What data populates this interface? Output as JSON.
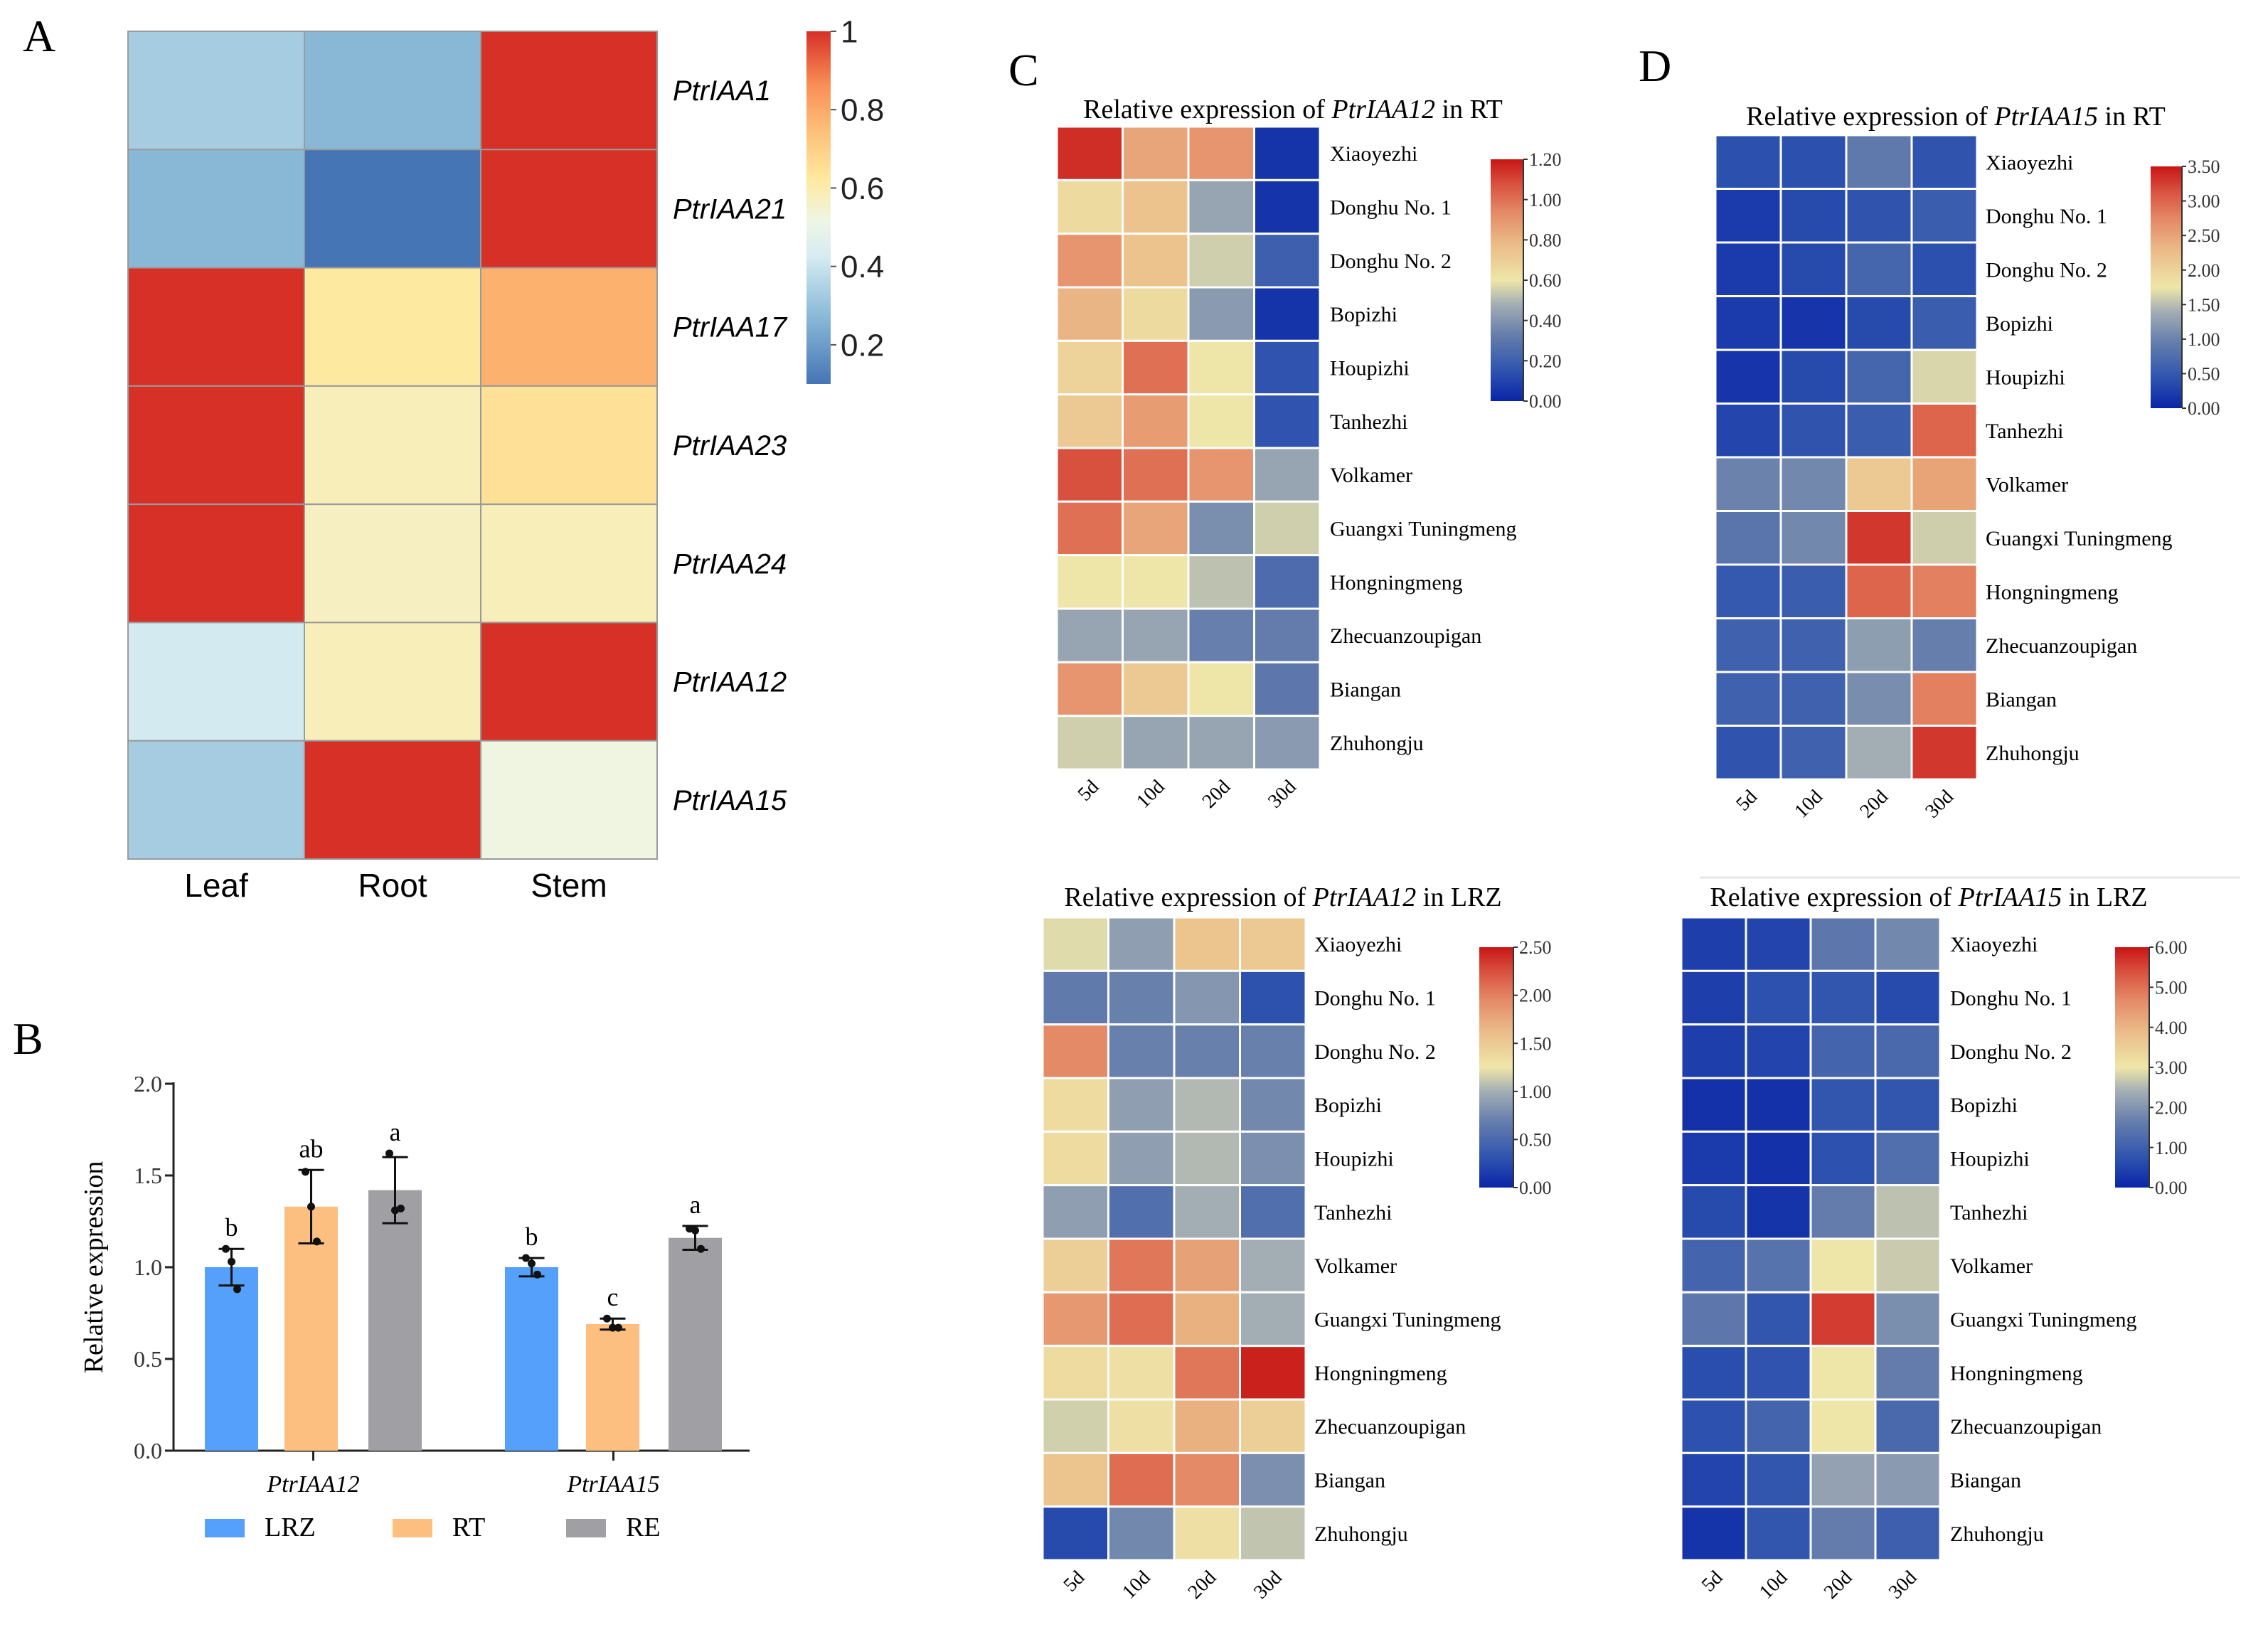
{
  "chart_data": [
    {
      "type": "heatmap",
      "panel": "A",
      "rows": [
        "PtrIAA1",
        "PtrIAA21",
        "PtrIAA17",
        "PtrIAA23",
        "PtrIAA24",
        "PtrIAA12",
        "PtrIAA15"
      ],
      "columns": [
        "Leaf",
        "Root",
        "Stem"
      ],
      "values": [
        [
          0.33,
          0.27,
          1.0
        ],
        [
          0.27,
          0.1,
          1.0
        ],
        [
          1.0,
          0.62,
          0.78
        ],
        [
          1.0,
          0.58,
          0.65
        ],
        [
          1.0,
          0.57,
          0.58
        ],
        [
          0.42,
          0.58,
          1.0
        ],
        [
          0.33,
          1.0,
          0.52
        ]
      ],
      "colorbar": {
        "range": [
          0.1,
          1
        ],
        "ticks": [
          0.2,
          0.4,
          0.6,
          0.8,
          1
        ],
        "tick_labels": [
          "0.2",
          "0.4",
          "0.6",
          "0.8",
          "1"
        ]
      },
      "colors": {
        "low": "#4575b4",
        "mid": "#f4f9e6",
        "high": "#d73027"
      }
    },
    {
      "type": "bar",
      "panel": "B",
      "categories": [
        "PtrIAA12",
        "PtrIAA15"
      ],
      "ylabel": "Relative expression",
      "ylim": [
        0,
        2
      ],
      "yticks": [
        0,
        0.5,
        1,
        1.5,
        2
      ],
      "ytick_labels": [
        "0.0",
        "0.5",
        "1.0",
        "1.5",
        "2.0"
      ],
      "legend_position": "bottom",
      "series": [
        {
          "name": "LRZ",
          "color": "#55a0fb",
          "values": [
            1.0,
            1.0
          ],
          "sd": [
            0.1,
            0.05
          ],
          "points": [
            [
              1.1,
              1.03,
              0.88
            ],
            [
              1.05,
              1.02,
              0.96
            ]
          ],
          "letters": [
            "b",
            "b"
          ]
        },
        {
          "name": "RT",
          "color": "#fdbf80",
          "values": [
            1.33,
            0.69
          ],
          "sd": [
            0.2,
            0.03
          ],
          "points": [
            [
              1.52,
              1.33,
              1.14
            ],
            [
              0.72,
              0.67,
              0.67
            ]
          ],
          "letters": [
            "ab",
            "c"
          ]
        },
        {
          "name": "RE",
          "color": "#a0a0a4",
          "values": [
            1.42,
            1.16
          ],
          "sd": [
            0.18,
            0.065
          ],
          "points": [
            [
              1.62,
              1.31,
              1.32
            ],
            [
              1.21,
              1.2,
              1.1
            ]
          ],
          "letters": [
            "a",
            "a"
          ]
        }
      ]
    },
    {
      "type": "heatmap",
      "panel": "C",
      "title": {
        "prefix": "Relative expression of ",
        "gene": "PtrIAA12",
        "suffix": " in RT"
      },
      "rows": [
        "Xiaoyezhi",
        "Donghu No. 1",
        "Donghu No. 2",
        "Bopizhi",
        "Houpizhi",
        "Tanhezhi",
        "Volkamer",
        "Guangxi Tuningmeng",
        "Hongningmeng",
        "Zhecuanzoupigan",
        "Biangan",
        "Zhuhongju"
      ],
      "columns": [
        "5d",
        "10d",
        "20d",
        "30d"
      ],
      "values": [
        [
          1.15,
          0.85,
          0.9,
          0.05
        ],
        [
          0.65,
          0.75,
          0.45,
          0.05
        ],
        [
          0.9,
          0.75,
          0.55,
          0.2
        ],
        [
          0.8,
          0.65,
          0.42,
          0.05
        ],
        [
          0.68,
          1.0,
          0.6,
          0.15
        ],
        [
          0.72,
          0.88,
          0.6,
          0.15
        ],
        [
          1.08,
          1.0,
          0.9,
          0.45
        ],
        [
          1.0,
          0.85,
          0.38,
          0.55
        ],
        [
          0.6,
          0.6,
          0.52,
          0.25
        ],
        [
          0.45,
          0.45,
          0.33,
          0.32
        ],
        [
          0.9,
          0.72,
          0.6,
          0.3
        ],
        [
          0.55,
          0.45,
          0.45,
          0.42
        ]
      ],
      "colorbar": {
        "range": [
          0,
          1.2
        ],
        "ticks": [
          0,
          0.2,
          0.4,
          0.6,
          0.8,
          1.0,
          1.2
        ],
        "tick_labels": [
          "0.00",
          "0.20",
          "0.40",
          "0.60",
          "0.80",
          "1.00",
          "1.20"
        ]
      }
    },
    {
      "type": "heatmap",
      "panel": "D",
      "title": {
        "prefix": "Relative expression of ",
        "gene": "PtrIAA15",
        "suffix": " in RT"
      },
      "rows": [
        "Xiaoyezhi",
        "Donghu No. 1",
        "Donghu No. 2",
        "Bopizhi",
        "Houpizhi",
        "Tanhezhi",
        "Volkamer",
        "Guangxi Tuningmeng",
        "Hongningmeng",
        "Zhecuanzoupigan",
        "Biangan",
        "Zhuhongju"
      ],
      "columns": [
        "5d",
        "10d",
        "20d",
        "30d"
      ],
      "values": [
        [
          0.4,
          0.4,
          0.9,
          0.45
        ],
        [
          0.2,
          0.35,
          0.45,
          0.55
        ],
        [
          0.2,
          0.35,
          0.65,
          0.4
        ],
        [
          0.2,
          0.15,
          0.35,
          0.55
        ],
        [
          0.15,
          0.35,
          0.65,
          1.65
        ],
        [
          0.3,
          0.45,
          0.55,
          3.0
        ],
        [
          1.0,
          1.05,
          2.1,
          2.5
        ],
        [
          0.85,
          1.05,
          3.3,
          1.6
        ],
        [
          0.5,
          0.55,
          3.0,
          2.8
        ],
        [
          0.6,
          0.6,
          1.25,
          0.95
        ],
        [
          0.6,
          0.6,
          1.1,
          2.8
        ],
        [
          0.45,
          0.6,
          1.4,
          3.3
        ]
      ],
      "colorbar": {
        "range": [
          0,
          3.5
        ],
        "ticks": [
          0,
          0.5,
          1,
          1.5,
          2,
          2.5,
          3,
          3.5
        ],
        "tick_labels": [
          "0.00",
          "0.50",
          "1.00",
          "1.50",
          "2.00",
          "2.50",
          "3.00",
          "3.50"
        ]
      }
    },
    {
      "type": "heatmap",
      "title": {
        "prefix": "Relative expression of ",
        "gene": "PtrIAA12",
        "suffix": " in LRZ"
      },
      "rows": [
        "Xiaoyezhi",
        "Donghu No. 1",
        "Donghu No. 2",
        "Bopizhi",
        "Houpizhi",
        "Tanhezhi",
        "Volkamer",
        "Guangxi Tuningmeng",
        "Hongningmeng",
        "Zhecuanzoupigan",
        "Biangan",
        "Zhuhongju"
      ],
      "columns": [
        "5d",
        "10d",
        "20d",
        "30d"
      ],
      "values": [
        [
          1.2,
          0.9,
          1.55,
          1.5
        ],
        [
          0.65,
          0.7,
          0.85,
          0.3
        ],
        [
          1.95,
          0.7,
          0.7,
          0.7
        ],
        [
          1.35,
          0.9,
          1.05,
          0.75
        ],
        [
          1.35,
          0.9,
          1.05,
          0.8
        ],
        [
          0.9,
          0.55,
          1.0,
          0.55
        ],
        [
          1.45,
          2.05,
          1.8,
          1.0
        ],
        [
          1.85,
          2.1,
          1.7,
          1.0
        ],
        [
          1.35,
          1.3,
          2.05,
          2.45
        ],
        [
          1.15,
          1.3,
          1.7,
          1.45
        ],
        [
          1.55,
          2.1,
          1.95,
          0.8
        ],
        [
          0.25,
          0.75,
          1.3,
          1.1
        ]
      ],
      "colorbar": {
        "range": [
          0,
          2.5
        ],
        "ticks": [
          0,
          0.5,
          1,
          1.5,
          2,
          2.5
        ],
        "tick_labels": [
          "0.00",
          "0.50",
          "1.00",
          "1.50",
          "2.00",
          "2.50"
        ]
      }
    },
    {
      "type": "heatmap",
      "title": {
        "prefix": "Relative expression of ",
        "gene": "PtrIAA15",
        "suffix": " in LRZ"
      },
      "rows": [
        "Xiaoyezhi",
        "Donghu No. 1",
        "Donghu No. 2",
        "Bopizhi",
        "Houpizhi",
        "Tanhezhi",
        "Volkamer",
        "Guangxi Tuningmeng",
        "Hongningmeng",
        "Zhecuanzoupigan",
        "Biangan",
        "Zhuhongju"
      ],
      "columns": [
        "5d",
        "10d",
        "20d",
        "30d"
      ],
      "values": [
        [
          0.4,
          0.5,
          1.5,
          1.8
        ],
        [
          0.4,
          0.7,
          0.8,
          0.6
        ],
        [
          0.4,
          0.5,
          1.1,
          1.2
        ],
        [
          0.2,
          0.2,
          0.8,
          0.8
        ],
        [
          0.35,
          0.2,
          0.7,
          1.3
        ],
        [
          0.6,
          0.25,
          1.6,
          2.6
        ],
        [
          1.1,
          1.4,
          3.0,
          2.7
        ],
        [
          1.5,
          0.8,
          5.6,
          1.9
        ],
        [
          0.65,
          0.75,
          3.0,
          1.6
        ],
        [
          0.7,
          1.1,
          3.0,
          1.2
        ],
        [
          0.5,
          0.8,
          2.2,
          2.1
        ],
        [
          0.25,
          0.8,
          1.6,
          1.0
        ]
      ],
      "colorbar": {
        "range": [
          0,
          6
        ],
        "ticks": [
          0,
          1,
          2,
          3,
          4,
          5,
          6
        ],
        "tick_labels": [
          "0.00",
          "1.00",
          "2.00",
          "3.00",
          "4.00",
          "5.00",
          "6.00"
        ]
      }
    }
  ]
}
